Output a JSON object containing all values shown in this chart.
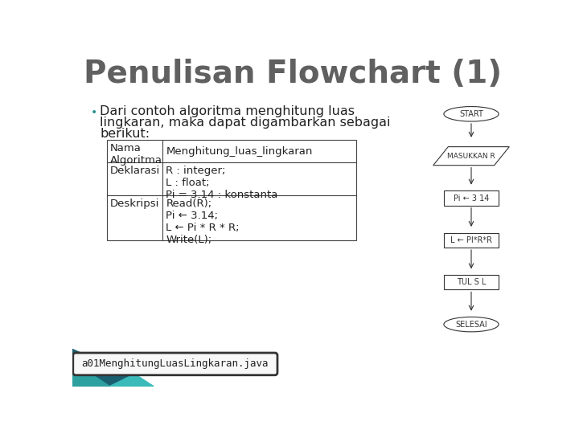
{
  "title": "Penulisan Flowchart (1)",
  "title_color": "#555555",
  "bg_color": "#ffffff",
  "bullet_text_line1": "Dari contoh algoritma menghitung luas",
  "bullet_text_line2": "lingkaran, maka dapat digambarkan sebagai",
  "bullet_text_line3": "berikut:",
  "table_col1_row0": "Nama\nAlgoritma",
  "table_col2_row0": "Menghitung_luas_lingkaran",
  "table_col1_row1": "Deklarasi",
  "table_col2_row1": "R : integer;\nL : float;\nPi = 3.14 : konstanta",
  "table_col1_row2": "Deskripsi",
  "table_col2_row2": "Read(R);\nPi ← 3.14;\nL ← Pi * R * R;\nWrite(L);",
  "footer_text": "a01MenghitungLuasLingkaran.java",
  "flowchart_labels": [
    "START",
    "MASUKKAN R",
    "Pi ← 3 14",
    "L ← PI*R*R",
    "TUL S L",
    "SELESAI"
  ],
  "teal_dark": "#1a5f70",
  "teal_light": "#2a9090",
  "teal_mid": "#155f6e"
}
